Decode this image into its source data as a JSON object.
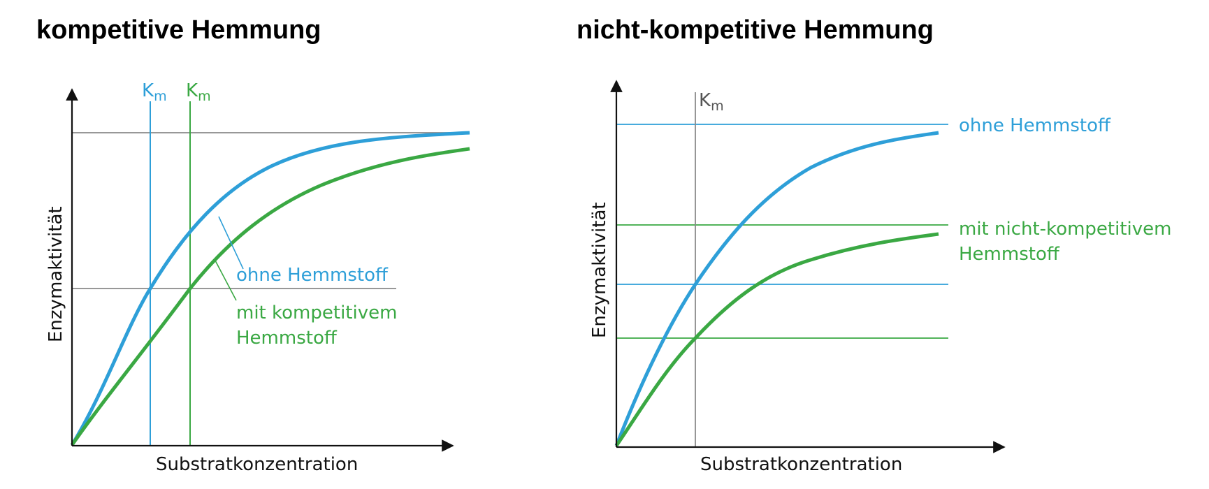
{
  "left": {
    "title": "kompetitive Hemmung",
    "xlabel": "Substratkonzentration",
    "ylabel": "Enzymaktivität",
    "km_labels": [
      {
        "main": "K",
        "sub": "m",
        "color": "#2e9fd8"
      },
      {
        "main": "K",
        "sub": "m",
        "color": "#3aa843"
      }
    ],
    "curve_labels": {
      "ohne": "ohne Hemmstoff",
      "mit_line1": "mit kompetitivem",
      "mit_line2": "Hemmstoff"
    }
  },
  "right": {
    "title": "nicht-kompetitive Hemmung",
    "xlabel": "Substratkonzentration",
    "ylabel": "Enzymaktivität",
    "km_label": {
      "main": "K",
      "sub": "m"
    },
    "curve_labels": {
      "ohne": "ohne Hemmstoff",
      "mit_line1": "mit nicht-kompetitivem",
      "mit_line2": "Hemmstoff"
    }
  },
  "colors": {
    "blue": "#2e9fd8",
    "green": "#3aa843",
    "gray": "#8a8a8a",
    "axis": "#111111"
  }
}
